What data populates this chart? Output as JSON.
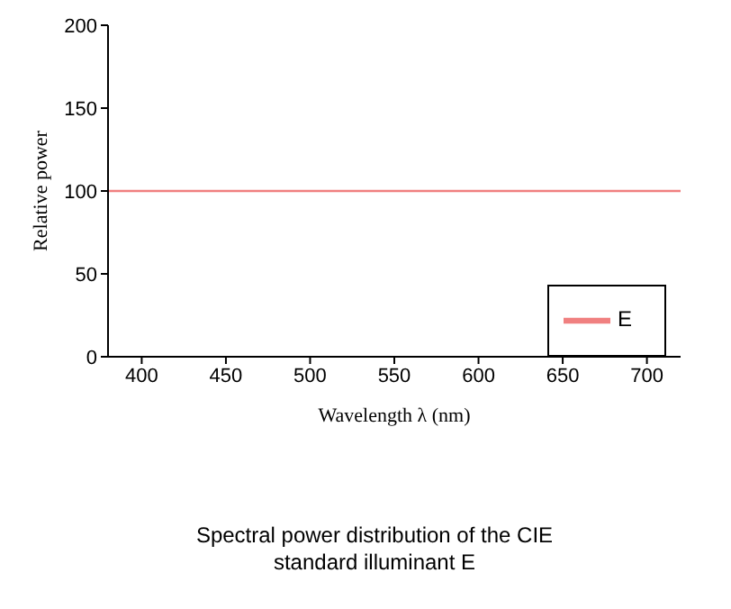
{
  "chart_data": {
    "type": "line",
    "xlabel": "Wavelength λ (nm)",
    "ylabel": "Relative power",
    "x": [
      380,
      720
    ],
    "series": [
      {
        "name": "E",
        "color": "#f08080",
        "values": [
          100,
          100
        ]
      }
    ],
    "xlim": [
      380,
      720
    ],
    "xticks": [
      400,
      450,
      500,
      550,
      600,
      650,
      700
    ],
    "ylim": [
      0,
      200
    ],
    "yticks": [
      0,
      50,
      100,
      150,
      200
    ],
    "grid": false,
    "legend": "bottom right",
    "marker": "none",
    "line_style": "solid",
    "annotations": [
      "Spectral power distribution of the CIE standard illuminant E"
    ]
  }
}
